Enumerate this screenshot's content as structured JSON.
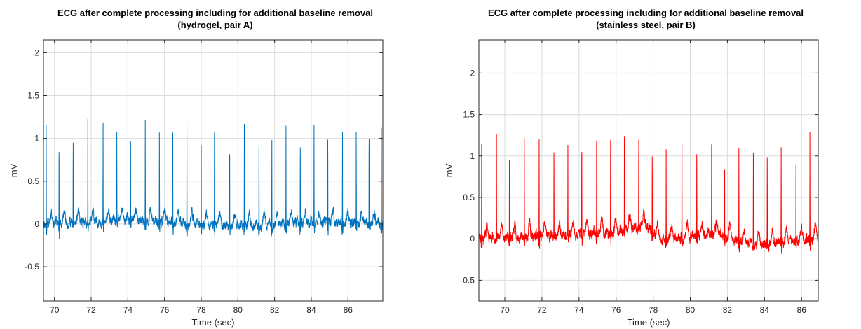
{
  "chart_data": [
    {
      "type": "line",
      "title_line1": "ECG after complete processing including for additional baseline removal",
      "title_line2": "(hydrogel, pair A)",
      "xlabel": "Time (sec)",
      "ylabel": "mV",
      "xlim": [
        69.4,
        87.9
      ],
      "ylim": [
        -0.9,
        2.15
      ],
      "xticks": [
        70,
        72,
        74,
        76,
        78,
        80,
        82,
        84,
        86
      ],
      "yticks": [
        -0.5,
        0,
        0.5,
        1,
        1.5,
        2
      ],
      "grid": true,
      "color": "#0072BD",
      "series": [
        {
          "baseline": {
            "x": [
              69.4,
              72,
              74,
              76,
              77.5,
              79,
              81,
              83,
              85,
              87.9
            ],
            "y": [
              0.0,
              0.01,
              0.04,
              0.02,
              0.0,
              -0.02,
              -0.03,
              0.0,
              0.01,
              -0.01
            ]
          },
          "r_peaks": [
            {
              "t": 69.55,
              "amp": 1.17
            },
            {
              "t": 70.25,
              "amp": 1.12
            },
            {
              "t": 71.02,
              "amp": 1.12
            },
            {
              "t": 71.82,
              "amp": 1.23
            },
            {
              "t": 72.65,
              "amp": 1.22
            },
            {
              "t": 73.4,
              "amp": 1.1
            },
            {
              "t": 74.15,
              "amp": 1.26
            },
            {
              "t": 74.95,
              "amp": 1.17
            },
            {
              "t": 75.72,
              "amp": 1.1
            },
            {
              "t": 76.45,
              "amp": 1.12
            },
            {
              "t": 77.22,
              "amp": 1.15
            },
            {
              "t": 78.0,
              "amp": 1.12
            },
            {
              "t": 78.72,
              "amp": 1.12
            },
            {
              "t": 79.55,
              "amp": 1.17
            },
            {
              "t": 80.35,
              "amp": 1.18
            },
            {
              "t": 81.15,
              "amp": 1.1
            },
            {
              "t": 81.85,
              "amp": 1.12
            },
            {
              "t": 82.62,
              "amp": 1.19
            },
            {
              "t": 83.4,
              "amp": 1.18
            },
            {
              "t": 84.15,
              "amp": 1.18
            },
            {
              "t": 84.9,
              "amp": 1.17
            },
            {
              "t": 85.7,
              "amp": 1.17
            },
            {
              "t": 86.45,
              "amp": 1.19
            },
            {
              "t": 87.15,
              "amp": 1.26
            },
            {
              "t": 87.82,
              "amp": 1.19
            }
          ],
          "noise_amp": 0.09,
          "t_wave_amp": 0.14
        }
      ]
    },
    {
      "type": "line",
      "title_line1": "ECG after complete processing including for additional baseline removal",
      "title_line2": "(stainless steel, pair B)",
      "xlabel": "Time (sec)",
      "ylabel": "mV",
      "xlim": [
        68.6,
        86.9
      ],
      "ylim": [
        -0.75,
        2.4
      ],
      "xticks": [
        70,
        72,
        74,
        76,
        78,
        80,
        82,
        84,
        86
      ],
      "yticks": [
        -0.5,
        0,
        0.5,
        1,
        1.5,
        2
      ],
      "grid": true,
      "color": "#FF0000",
      "series": [
        {
          "baseline": {
            "x": [
              68.6,
              70,
              72,
              74,
              76,
              77.5,
              78.5,
              80,
              81.5,
              82.5,
              84,
              85,
              86.9
            ],
            "y": [
              0.0,
              0.01,
              0.03,
              0.05,
              0.08,
              0.15,
              -0.02,
              0.02,
              0.07,
              -0.05,
              -0.08,
              -0.05,
              0.0
            ]
          },
          "r_peaks": [
            {
              "t": 68.75,
              "amp": 1.26
            },
            {
              "t": 69.55,
              "amp": 1.2
            },
            {
              "t": 70.25,
              "amp": 1.17
            },
            {
              "t": 71.05,
              "amp": 1.2
            },
            {
              "t": 71.85,
              "amp": 1.26
            },
            {
              "t": 72.65,
              "amp": 1.21
            },
            {
              "t": 73.4,
              "amp": 1.11
            },
            {
              "t": 74.15,
              "amp": 1.26
            },
            {
              "t": 74.95,
              "amp": 1.16
            },
            {
              "t": 75.7,
              "amp": 1.2
            },
            {
              "t": 76.45,
              "amp": 1.2
            },
            {
              "t": 77.22,
              "amp": 1.22
            },
            {
              "t": 77.95,
              "amp": 1.15
            },
            {
              "t": 78.7,
              "amp": 1.08
            },
            {
              "t": 79.55,
              "amp": 1.2
            },
            {
              "t": 80.35,
              "amp": 1.18
            },
            {
              "t": 81.15,
              "amp": 1.08
            },
            {
              "t": 81.85,
              "amp": 1.13
            },
            {
              "t": 82.62,
              "amp": 1.18
            },
            {
              "t": 83.4,
              "amp": 1.2
            },
            {
              "t": 84.15,
              "amp": 1.18
            },
            {
              "t": 84.9,
              "amp": 1.18
            },
            {
              "t": 85.7,
              "amp": 1.23
            },
            {
              "t": 86.45,
              "amp": 1.26
            }
          ],
          "noise_amp": 0.1,
          "t_wave_amp": 0.16
        }
      ]
    }
  ]
}
